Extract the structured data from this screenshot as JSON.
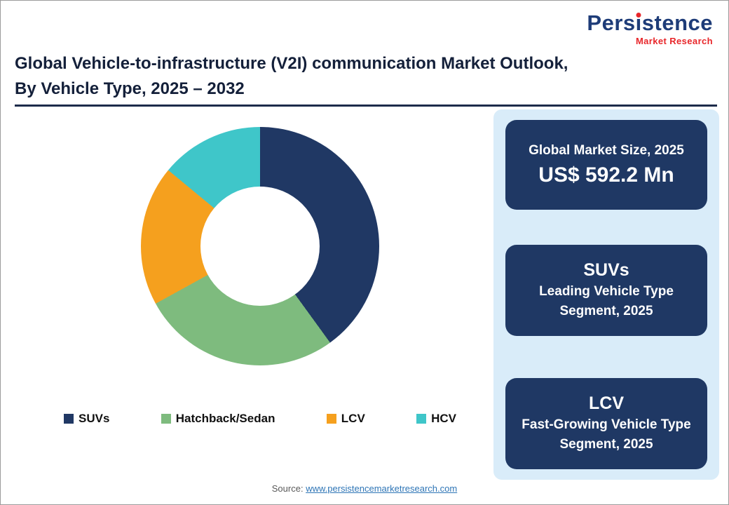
{
  "logo": {
    "word": "Persistence",
    "word_pre": "Pers",
    "word_i": "i",
    "word_post": "stence",
    "subtitle": "Market Research"
  },
  "title": {
    "line1": "Global Vehicle-to-infrastructure (V2I) communication Market Outlook,",
    "line2": "By Vehicle Type, 2025 – 2032"
  },
  "chart_data": {
    "type": "pie",
    "subtype": "donut",
    "title": "Global Vehicle-to-infrastructure (V2I) communication Market Outlook, By Vehicle Type, 2025 – 2032",
    "categories": [
      "SUVs",
      "Hatchback/Sedan",
      "LCV",
      "HCV"
    ],
    "values": [
      40,
      27,
      19,
      14
    ],
    "values_estimated": true,
    "unit": "% share (estimated from arc angles)",
    "colors": [
      "#203864",
      "#7ebb7e",
      "#f5a01e",
      "#3fc6c9"
    ],
    "start_angle_deg": 0,
    "direction": "clockwise",
    "donut_hole_ratio": 0.5,
    "legend_position": "bottom",
    "annotations": [
      "Global Market Size, 2025: US$ 592.2 Mn",
      "SUVs: Leading Vehicle Type Segment, 2025",
      "LCV: Fast-Growing Vehicle Type Segment, 2025"
    ]
  },
  "legend": {
    "items": [
      {
        "label": "SUVs",
        "color": "#203864"
      },
      {
        "label": "Hatchback/Sedan",
        "color": "#7ebb7e"
      },
      {
        "label": "LCV",
        "color": "#f5a01e"
      },
      {
        "label": "HCV",
        "color": "#3fc6c9"
      }
    ]
  },
  "sidebar": {
    "boxes": [
      {
        "line1": "Global Market Size, 2025",
        "line2": "US$ 592.2 Mn"
      },
      {
        "line1": "SUVs",
        "line2": "Leading Vehicle Type Segment, 2025"
      },
      {
        "line1": "LCV",
        "line2": "Fast-Growing Vehicle Type Segment, 2025"
      }
    ]
  },
  "source": {
    "prefix": "Source: ",
    "link": "www.persistencemarketresearch.com"
  },
  "accent_colors": {
    "navy_box": "#1f3864",
    "panel_light_blue": "#d9ecf9",
    "logo_blue": "#1e3c78",
    "logo_red": "#e8262a",
    "link_blue": "#2e75b6"
  }
}
